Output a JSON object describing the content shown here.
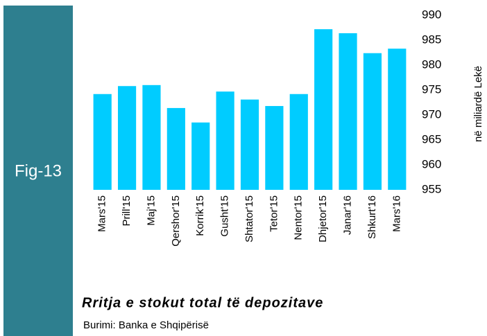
{
  "sidebar_label": "Fig-13",
  "chart_data": {
    "type": "bar",
    "caption": "Rritja e stokut total të depozitave",
    "source": "Burimi: Banka e Shqipërisë",
    "y_label": "në miliardë  Lekë",
    "categories": [
      "Mars'15",
      "Prill'15",
      "Maj'15",
      "Qershor'15",
      "Korrik'15",
      "Gusht'15",
      "Shtator'15",
      "Tetor'15",
      "Nentor'15",
      "Dhjetor'15",
      "Janar'16",
      "Shkurt'16",
      "Mars'16"
    ],
    "values": [
      974.2,
      975.8,
      976.0,
      971.4,
      968.5,
      974.7,
      973.1,
      971.8,
      974.2,
      987.2,
      986.4,
      982.4,
      983.3
    ],
    "color": "#00ccff",
    "ylim": [
      955,
      990
    ],
    "yticks": [
      955,
      960,
      965,
      970,
      975,
      980,
      985,
      990
    ],
    "grid": false
  }
}
